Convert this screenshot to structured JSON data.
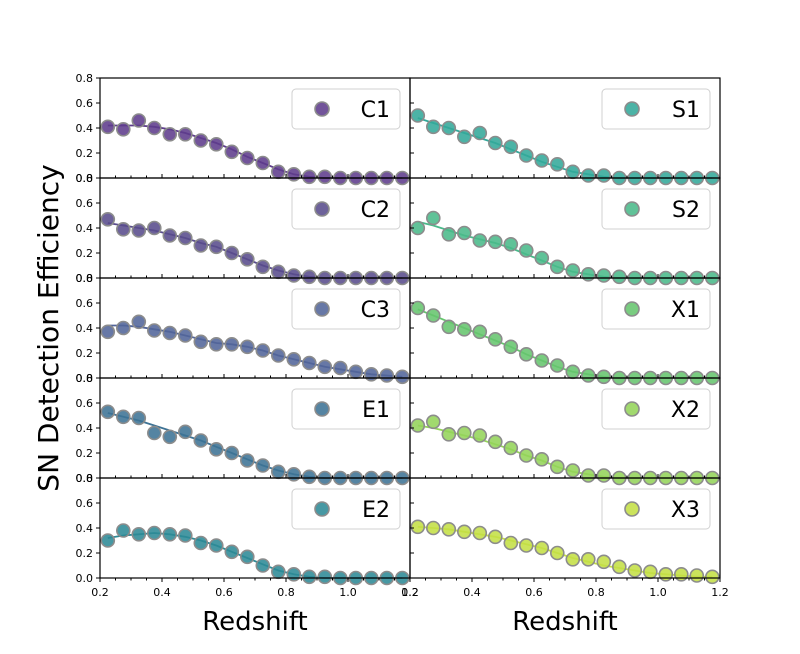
{
  "chart_data": {
    "type": "scatter",
    "ylabel": "SN Detection Efficiency",
    "xlabel": "Redshift",
    "xlim": [
      0.2,
      1.2
    ],
    "ylim": [
      0.0,
      0.8
    ],
    "xticks": [
      "0.2",
      "0.4",
      "0.6",
      "0.8",
      "1.0",
      "1.2"
    ],
    "yticks": [
      "0.0",
      "0.2",
      "0.4",
      "0.6",
      "0.8"
    ],
    "grid": false,
    "legend_position": "top-right",
    "x": [
      0.225,
      0.275,
      0.325,
      0.375,
      0.425,
      0.475,
      0.525,
      0.575,
      0.625,
      0.675,
      0.725,
      0.775,
      0.825,
      0.875,
      0.925,
      0.975,
      1.025,
      1.075,
      1.125,
      1.175
    ],
    "panels": [
      {
        "name": "C1",
        "color": "#5e3c8c",
        "values": [
          0.41,
          0.39,
          0.46,
          0.4,
          0.35,
          0.35,
          0.3,
          0.27,
          0.21,
          0.16,
          0.12,
          0.05,
          0.03,
          0.01,
          0.01,
          0.0,
          0.0,
          0.0,
          0.0,
          0.0
        ],
        "curve": [
          0.42,
          0.42,
          0.42,
          0.41,
          0.39,
          0.36,
          0.32,
          0.28,
          0.23,
          0.17,
          0.12,
          0.07,
          0.03,
          0.01,
          0.0,
          0.0,
          0.0,
          0.0,
          0.0,
          0.0
        ]
      },
      {
        "name": "C2",
        "color": "#594c8c",
        "values": [
          0.47,
          0.39,
          0.38,
          0.4,
          0.34,
          0.32,
          0.26,
          0.25,
          0.2,
          0.15,
          0.09,
          0.05,
          0.02,
          0.01,
          0.0,
          0.0,
          0.0,
          0.0,
          0.0,
          0.0
        ],
        "curve": [
          0.44,
          0.42,
          0.4,
          0.38,
          0.35,
          0.32,
          0.28,
          0.25,
          0.2,
          0.15,
          0.1,
          0.06,
          0.03,
          0.01,
          0.0,
          0.0,
          0.0,
          0.0,
          0.0,
          0.0
        ]
      },
      {
        "name": "C3",
        "color": "#52659a",
        "values": [
          0.37,
          0.4,
          0.45,
          0.38,
          0.36,
          0.34,
          0.29,
          0.27,
          0.27,
          0.25,
          0.22,
          0.18,
          0.15,
          0.12,
          0.09,
          0.08,
          0.05,
          0.03,
          0.02,
          0.01
        ],
        "curve": [
          0.42,
          0.42,
          0.41,
          0.39,
          0.37,
          0.34,
          0.31,
          0.28,
          0.27,
          0.25,
          0.22,
          0.18,
          0.15,
          0.12,
          0.09,
          0.07,
          0.05,
          0.03,
          0.02,
          0.01
        ]
      },
      {
        "name": "E1",
        "color": "#3e7395",
        "values": [
          0.53,
          0.49,
          0.48,
          0.36,
          0.33,
          0.37,
          0.3,
          0.23,
          0.2,
          0.14,
          0.1,
          0.05,
          0.03,
          0.01,
          0.0,
          0.0,
          0.0,
          0.0,
          0.0,
          0.0
        ],
        "curve": [
          0.52,
          0.49,
          0.46,
          0.42,
          0.38,
          0.34,
          0.3,
          0.25,
          0.2,
          0.15,
          0.1,
          0.06,
          0.03,
          0.01,
          0.0,
          0.0,
          0.0,
          0.0,
          0.0,
          0.0
        ]
      },
      {
        "name": "E2",
        "color": "#2e8a96",
        "values": [
          0.3,
          0.38,
          0.35,
          0.36,
          0.35,
          0.34,
          0.28,
          0.26,
          0.21,
          0.17,
          0.1,
          0.05,
          0.03,
          0.01,
          0.01,
          0.0,
          0.0,
          0.0,
          0.0,
          0.0
        ],
        "curve": [
          0.32,
          0.34,
          0.35,
          0.36,
          0.35,
          0.33,
          0.3,
          0.26,
          0.21,
          0.16,
          0.11,
          0.06,
          0.03,
          0.01,
          0.0,
          0.0,
          0.0,
          0.0,
          0.0,
          0.0
        ]
      },
      {
        "name": "S1",
        "color": "#33a89a",
        "values": [
          0.5,
          0.41,
          0.4,
          0.33,
          0.36,
          0.28,
          0.25,
          0.18,
          0.14,
          0.11,
          0.05,
          0.02,
          0.02,
          0.0,
          0.0,
          0.0,
          0.0,
          0.0,
          0.0,
          0.0
        ],
        "curve": [
          0.48,
          0.44,
          0.4,
          0.36,
          0.32,
          0.28,
          0.23,
          0.18,
          0.13,
          0.09,
          0.05,
          0.03,
          0.01,
          0.0,
          0.0,
          0.0,
          0.0,
          0.0,
          0.0,
          0.0
        ]
      },
      {
        "name": "S2",
        "color": "#4ab98a",
        "values": [
          0.4,
          0.48,
          0.35,
          0.36,
          0.3,
          0.29,
          0.27,
          0.22,
          0.16,
          0.09,
          0.06,
          0.03,
          0.02,
          0.01,
          0.0,
          0.0,
          0.0,
          0.0,
          0.0,
          0.0
        ],
        "curve": [
          0.45,
          0.42,
          0.38,
          0.34,
          0.31,
          0.28,
          0.24,
          0.19,
          0.14,
          0.09,
          0.05,
          0.03,
          0.01,
          0.0,
          0.0,
          0.0,
          0.0,
          0.0,
          0.0,
          0.0
        ]
      },
      {
        "name": "X1",
        "color": "#66c56e",
        "values": [
          0.56,
          0.5,
          0.41,
          0.39,
          0.37,
          0.31,
          0.25,
          0.19,
          0.14,
          0.1,
          0.05,
          0.02,
          0.01,
          0.0,
          0.0,
          0.0,
          0.0,
          0.0,
          0.0,
          0.0
        ],
        "curve": [
          0.55,
          0.5,
          0.45,
          0.4,
          0.35,
          0.3,
          0.25,
          0.19,
          0.14,
          0.09,
          0.05,
          0.03,
          0.01,
          0.0,
          0.0,
          0.0,
          0.0,
          0.0,
          0.0,
          0.0
        ]
      },
      {
        "name": "X2",
        "color": "#94d45a",
        "values": [
          0.42,
          0.45,
          0.35,
          0.36,
          0.34,
          0.29,
          0.24,
          0.18,
          0.15,
          0.09,
          0.06,
          0.02,
          0.02,
          0.0,
          0.0,
          0.0,
          0.0,
          0.0,
          0.0,
          0.0
        ],
        "curve": [
          0.42,
          0.4,
          0.37,
          0.34,
          0.31,
          0.27,
          0.23,
          0.18,
          0.14,
          0.09,
          0.05,
          0.03,
          0.01,
          0.0,
          0.0,
          0.0,
          0.0,
          0.0,
          0.0,
          0.0
        ]
      },
      {
        "name": "X3",
        "color": "#c4df46",
        "values": [
          0.41,
          0.4,
          0.39,
          0.37,
          0.36,
          0.33,
          0.28,
          0.26,
          0.24,
          0.2,
          0.15,
          0.15,
          0.13,
          0.09,
          0.06,
          0.05,
          0.03,
          0.03,
          0.02,
          0.01
        ],
        "curve": [
          0.41,
          0.4,
          0.39,
          0.37,
          0.35,
          0.33,
          0.3,
          0.27,
          0.24,
          0.2,
          0.16,
          0.13,
          0.1,
          0.08,
          0.06,
          0.04,
          0.03,
          0.02,
          0.01,
          0.01
        ]
      }
    ]
  }
}
